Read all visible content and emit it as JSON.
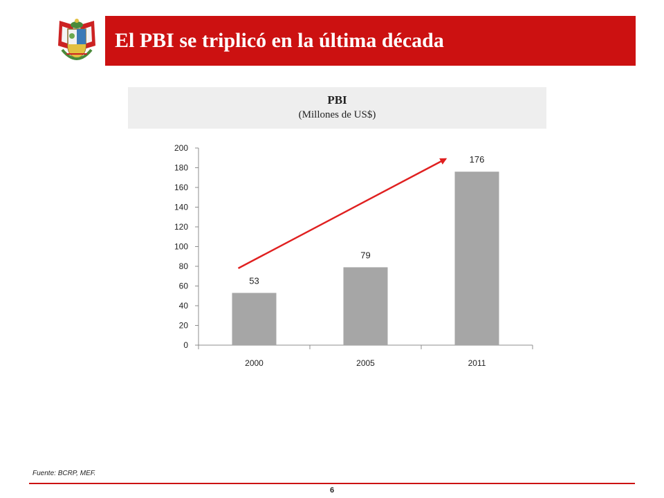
{
  "header": {
    "title": "El PBI se triplicó en la última década"
  },
  "chart_data": {
    "type": "bar",
    "title": "PBI",
    "subtitle": "(Millones de US$)",
    "categories": [
      "2000",
      "2005",
      "2011"
    ],
    "values": [
      53,
      79,
      176
    ],
    "data_labels": [
      "53",
      "79",
      "176"
    ],
    "ylim": [
      0,
      200
    ],
    "yticks": [
      0,
      20,
      40,
      60,
      80,
      100,
      120,
      140,
      160,
      180,
      200
    ],
    "xlabel": "",
    "ylabel": "",
    "grid": false,
    "legend": "none",
    "bar_color": "#a6a6a6",
    "annotation_arrow": {
      "from": {
        "category": "2000",
        "value": 78
      },
      "to": {
        "category": "2011",
        "value": 189
      },
      "color": "#e02020"
    }
  },
  "footer": {
    "source": "Fuente: BCRP, MEF.",
    "page_number": "6"
  },
  "colors": {
    "title_bar": "#cc1111",
    "header_box": "#eeeeee",
    "footer_line": "#cc1111"
  }
}
